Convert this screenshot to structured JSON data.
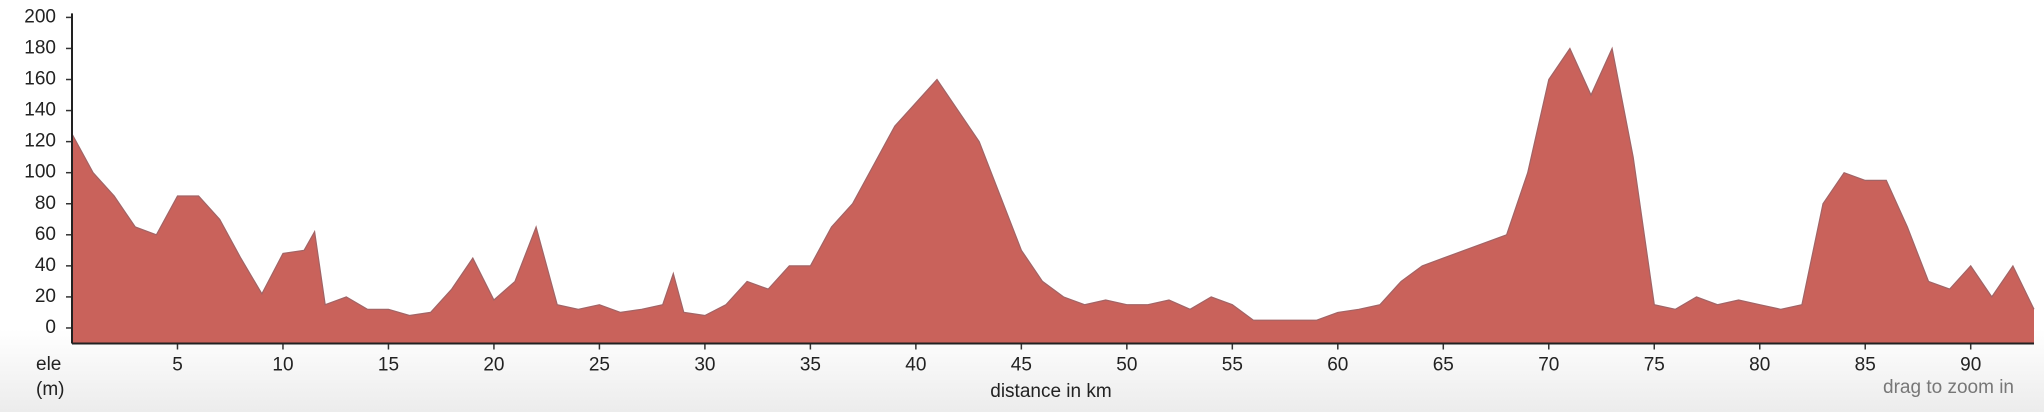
{
  "chart_data": {
    "type": "area",
    "ylabel": [
      "ele",
      "(m)"
    ],
    "xlabel": "distance in km",
    "hint": "drag to zoom in",
    "color": "#c9625b",
    "line_color": "#a06466",
    "x": [
      0,
      1,
      2,
      3,
      4,
      5,
      6,
      7,
      8,
      9,
      10,
      11,
      11.5,
      12,
      13,
      14,
      15,
      16,
      17,
      18,
      19,
      20,
      21,
      22,
      23,
      24,
      25,
      26,
      27,
      28,
      28.5,
      29,
      30,
      31,
      32,
      33,
      34,
      35,
      36,
      37,
      38,
      39,
      40,
      41,
      42,
      43,
      44,
      45,
      46,
      47,
      48,
      49,
      50,
      51,
      52,
      53,
      54,
      55,
      56,
      57,
      58,
      59,
      60,
      61,
      62,
      63,
      64,
      65,
      66,
      67,
      68,
      69,
      70,
      71,
      72,
      73,
      74,
      75,
      76,
      77,
      78,
      79,
      80,
      81,
      82,
      83,
      84,
      85,
      86,
      87,
      88,
      89,
      90,
      91,
      92,
      93
    ],
    "values": [
      125,
      100,
      85,
      65,
      60,
      85,
      85,
      70,
      45,
      22,
      48,
      50,
      62,
      15,
      20,
      12,
      12,
      8,
      10,
      25,
      45,
      18,
      30,
      65,
      15,
      12,
      15,
      10,
      12,
      15,
      35,
      10,
      8,
      15,
      30,
      25,
      40,
      40,
      65,
      80,
      105,
      130,
      145,
      160,
      140,
      120,
      85,
      50,
      30,
      20,
      15,
      18,
      15,
      15,
      18,
      12,
      20,
      15,
      5,
      5,
      5,
      5,
      10,
      12,
      15,
      30,
      40,
      45,
      50,
      55,
      60,
      100,
      160,
      180,
      150,
      180,
      110,
      15,
      12,
      20,
      15,
      18,
      15,
      12,
      15,
      80,
      100,
      95,
      95,
      65,
      30,
      25,
      40,
      20,
      40,
      12
    ],
    "xlim": [
      0,
      93
    ],
    "ylim": [
      -10,
      200
    ],
    "xticks": [
      5,
      10,
      15,
      20,
      25,
      30,
      35,
      40,
      45,
      50,
      55,
      60,
      65,
      70,
      75,
      80,
      85,
      90
    ],
    "yticks": [
      0,
      20,
      40,
      60,
      80,
      100,
      120,
      140,
      160,
      180,
      200
    ]
  }
}
